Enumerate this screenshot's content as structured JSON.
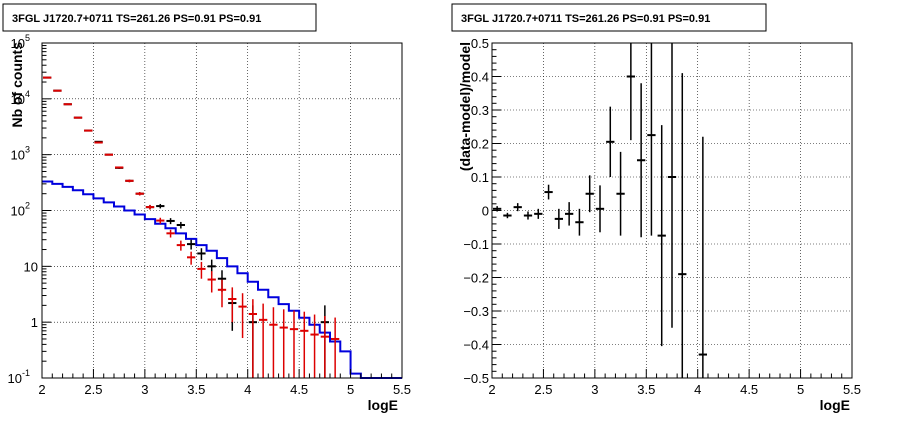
{
  "colors": {
    "data": "#000000",
    "model": "#0000dd",
    "sum": "#dd0000",
    "background": "#ffffff"
  },
  "chart_data": [
    {
      "type": "histogram",
      "title": "3FGL J1720.7+0711 TS=261.26 PS=0.91 PS=0.91",
      "xlabel": "logE",
      "ylabel": "Nb of counts",
      "xlim": [
        2,
        5.5
      ],
      "ylim": [
        0.1,
        100000
      ],
      "log_y": true,
      "grid": true,
      "xticks": [
        "2",
        "2.5",
        "3",
        "3.5",
        "4",
        "4.5",
        "5",
        "5.5"
      ],
      "yticks": [
        {
          "base": "10",
          "exp": "-1"
        },
        {
          "base": "1",
          "exp": ""
        },
        {
          "base": "10",
          "exp": ""
        },
        {
          "base": "10",
          "exp": "2"
        },
        {
          "base": "10",
          "exp": "3"
        },
        {
          "base": "10",
          "exp": "4"
        },
        {
          "base": "10",
          "exp": "5"
        }
      ],
      "bin_edges": [
        2.0,
        2.1,
        2.2,
        2.3,
        2.4,
        2.5,
        2.6,
        2.7,
        2.8,
        2.9,
        3.0,
        3.1,
        3.2,
        3.3,
        3.4,
        3.5,
        3.6,
        3.7,
        3.8,
        3.9,
        4.0,
        4.1,
        4.2,
        4.3,
        4.4,
        4.5,
        4.6,
        4.7,
        4.8,
        4.9,
        5.0,
        5.1,
        5.2,
        5.3,
        5.4,
        5.5
      ],
      "series": [
        {
          "role": "model",
          "values": [
            330,
            300,
            265,
            230,
            195,
            165,
            140,
            118,
            100,
            85,
            70,
            58,
            48,
            39,
            31,
            24,
            19,
            14,
            10,
            7.5,
            5.3,
            3.8,
            2.8,
            2.1,
            1.6,
            1.2,
            0.9,
            0.65,
            0.45,
            0.3,
            0.12,
            0.1,
            0.1,
            0.1,
            0.1
          ]
        },
        {
          "role": "sum",
          "x": [
            2.05,
            2.15,
            2.25,
            2.35,
            2.45,
            2.55,
            2.65,
            2.75,
            2.85,
            2.95,
            3.05,
            3.15,
            3.25,
            3.35,
            3.45,
            3.55,
            3.65,
            3.75,
            3.85,
            3.95,
            4.05,
            4.15,
            4.25,
            4.35,
            4.45,
            4.55,
            4.65,
            4.75,
            4.85
          ],
          "y": [
            24000,
            14000,
            8000,
            4600,
            2700,
            1650,
            1000,
            590,
            340,
            200,
            115,
            66,
            39,
            24,
            14.5,
            9,
            5.8,
            3.8,
            2.6,
            1.9,
            1.4,
            1.1,
            0.9,
            0.8,
            0.75,
            0.7,
            0.6,
            0.55,
            0.5
          ],
          "yerr_hi": [
            155,
            120,
            90,
            68,
            52,
            41,
            32,
            24,
            18.5,
            14,
            10.7,
            8.1,
            6.2,
            4.9,
            3.8,
            3.0,
            2.4,
            1.95,
            1.6,
            1.4,
            1.18,
            1.05,
            0.95,
            0.9,
            0.87,
            0.84,
            0.77,
            0.74,
            0.71
          ],
          "yerr_lo": [
            155,
            120,
            90,
            68,
            52,
            41,
            32,
            24,
            18.5,
            14,
            10.7,
            8.1,
            6.2,
            4.9,
            3.8,
            3.0,
            2.4,
            1.95,
            1.6,
            1.38,
            1.3,
            1.09,
            0.89,
            0.79,
            0.74,
            0.69,
            0.59,
            0.54,
            0.49
          ]
        },
        {
          "role": "data",
          "x": [
            2.05,
            2.15,
            2.25,
            2.35,
            2.45,
            2.55,
            2.65,
            2.75,
            2.85,
            2.95,
            3.05,
            3.15,
            3.25,
            3.35,
            3.45,
            3.55,
            3.65,
            3.75,
            3.85,
            4.05,
            4.75
          ],
          "y": [
            24000,
            14000,
            8000,
            4600,
            2700,
            1700,
            1000,
            580,
            340,
            200,
            115,
            120,
            65,
            55,
            25,
            17,
            10,
            6,
            2.2,
            1,
            1
          ],
          "yerr_hi": [
            155,
            118,
            89,
            68,
            52,
            41,
            32,
            24,
            18.4,
            14.1,
            10.7,
            11,
            8,
            7.4,
            5,
            4.1,
            3.2,
            2.5,
            1.5,
            1,
            1
          ],
          "yerr_lo": [
            155,
            118,
            89,
            68,
            52,
            41,
            32,
            24,
            18.4,
            14.1,
            10.7,
            11,
            8,
            7.4,
            5,
            4.1,
            3.2,
            2.5,
            1.5,
            0.99,
            0.99
          ]
        }
      ]
    },
    {
      "type": "scatter",
      "title": "3FGL J1720.7+0711 TS=261.26 PS=0.91 PS=0.91",
      "xlabel": "logE",
      "ylabel": "(data-model)/model",
      "xlim": [
        2,
        5.5
      ],
      "ylim": [
        -0.5,
        0.5
      ],
      "grid": true,
      "xticks": [
        "2",
        "2.5",
        "3",
        "3.5",
        "4",
        "4.5",
        "5",
        "5.5"
      ],
      "yticks": [
        "−0.5",
        "−0.4",
        "−0.3",
        "−0.2",
        "−0.1",
        "0",
        "0.1",
        "0.2",
        "0.3",
        "0.4",
        "0.5"
      ],
      "series": [
        {
          "role": "residual",
          "x": [
            2.05,
            2.15,
            2.25,
            2.35,
            2.45,
            2.55,
            2.65,
            2.75,
            2.85,
            2.95,
            3.05,
            3.15,
            3.25,
            3.35,
            3.45,
            3.55,
            3.65,
            3.75,
            3.85,
            4.05
          ],
          "y": [
            0.005,
            -0.015,
            0.01,
            -0.015,
            -0.01,
            0.055,
            -0.025,
            -0.01,
            -0.035,
            0.05,
            0.005,
            0.205,
            0.05,
            0.4,
            0.15,
            0.225,
            -0.075,
            0.1,
            -0.19,
            -0.43
          ],
          "yerr": [
            0.008,
            0.008,
            0.012,
            0.012,
            0.015,
            0.022,
            0.03,
            0.035,
            0.04,
            0.055,
            0.07,
            0.105,
            0.125,
            0.19,
            0.23,
            0.3,
            0.33,
            0.45,
            0.6,
            0.65
          ]
        }
      ]
    }
  ]
}
